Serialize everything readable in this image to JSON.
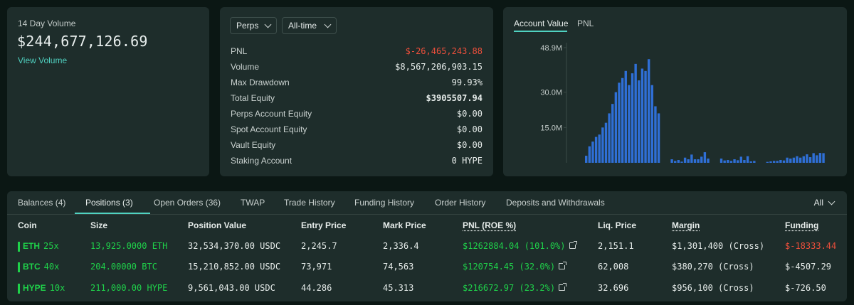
{
  "volume": {
    "label": "14 Day Volume",
    "value": "$244,677,126.69",
    "link": "View Volume"
  },
  "stats": {
    "market_select": "Perps",
    "time_select": "All-time",
    "rows": [
      {
        "label": "PNL",
        "value": "$-26,465,243.88",
        "tone": "neg"
      },
      {
        "label": "Volume",
        "value": "$8,567,206,903.15",
        "tone": ""
      },
      {
        "label": "Max Drawdown",
        "value": "99.93%",
        "tone": ""
      },
      {
        "label": "Total Equity",
        "value": "$3905507.94",
        "tone": "bold"
      },
      {
        "label": "Perps Account Equity",
        "value": "$0.00",
        "tone": ""
      },
      {
        "label": "Spot Account Equity",
        "value": "$0.00",
        "tone": ""
      },
      {
        "label": "Vault Equity",
        "value": "$0.00",
        "tone": ""
      },
      {
        "label": "Staking Account",
        "value": "0 HYPE",
        "tone": ""
      }
    ]
  },
  "chart_tabs": {
    "account_value": "Account Value",
    "pnl": "PNL"
  },
  "chart_data": {
    "type": "bar",
    "title": "",
    "xlabel": "",
    "ylabel": "",
    "ylim": [
      0,
      48.9
    ],
    "ytick_labels": [
      "48.9M",
      "30.0M",
      "15.0M"
    ],
    "ytick_values": [
      48.9,
      30.0,
      15.0
    ],
    "color": "#2f6fd6",
    "values": [
      3,
      7,
      9,
      11,
      12,
      15,
      17,
      21,
      25,
      30,
      34,
      36,
      39,
      33,
      38,
      42,
      35,
      40,
      39,
      44,
      33,
      24,
      21,
      0,
      0,
      0,
      1.5,
      0.8,
      1.2,
      0.5,
      2.2,
      1.5,
      3.5,
      1.5,
      1.5,
      2.6,
      4.5,
      1.8,
      0,
      0,
      0,
      1.8,
      1,
      1.2,
      0.8,
      1.5,
      1.1,
      2.6,
      1.2,
      2.8,
      0.6,
      0.8,
      0,
      0,
      0,
      0.4,
      0.6,
      0.8,
      0.8,
      1.2,
      1,
      2.2,
      1.8,
      2.2,
      2.8,
      2.2,
      2.8,
      3.6,
      2.4,
      4.1,
      3.2,
      4.2,
      4.1
    ]
  },
  "bottom": {
    "tabs": [
      "Balances (4)",
      "Positions (3)",
      "Open Orders (36)",
      "TWAP",
      "Trade History",
      "Funding History",
      "Order History",
      "Deposits and Withdrawals"
    ],
    "active_tab": 1,
    "filter": "All",
    "columns": [
      "Coin",
      "Size",
      "Position Value",
      "Entry Price",
      "Mark Price",
      "PNL (ROE %)",
      "Liq. Price",
      "Margin",
      "Funding"
    ],
    "rows": [
      {
        "coin": "ETH",
        "leverage": "25x",
        "size": "13,925.0000 ETH",
        "position_value": "32,534,370.00 USDC",
        "entry": "2,245.7",
        "mark": "2,336.4",
        "pnl": "$1262884.04 (101.0%)",
        "liq": "2,151.1",
        "margin": "$1,301,400 (Cross)",
        "funding": "$-18333.44",
        "funding_tone": "neg"
      },
      {
        "coin": "BTC",
        "leverage": "40x",
        "size": "204.00000 BTC",
        "position_value": "15,210,852.00 USDC",
        "entry": "73,971",
        "mark": "74,563",
        "pnl": "$120754.45 (32.0%)",
        "liq": "62,008",
        "margin": "$380,270 (Cross)",
        "funding": "$-4507.29",
        "funding_tone": ""
      },
      {
        "coin": "HYPE",
        "leverage": "10x",
        "size": "211,000.00 HYPE",
        "position_value": "9,561,043.00 USDC",
        "entry": "44.286",
        "mark": "45.313",
        "pnl": "$216672.97 (23.2%)",
        "liq": "32.696",
        "margin": "$956,100 (Cross)",
        "funding": "$-726.50",
        "funding_tone": ""
      }
    ]
  }
}
